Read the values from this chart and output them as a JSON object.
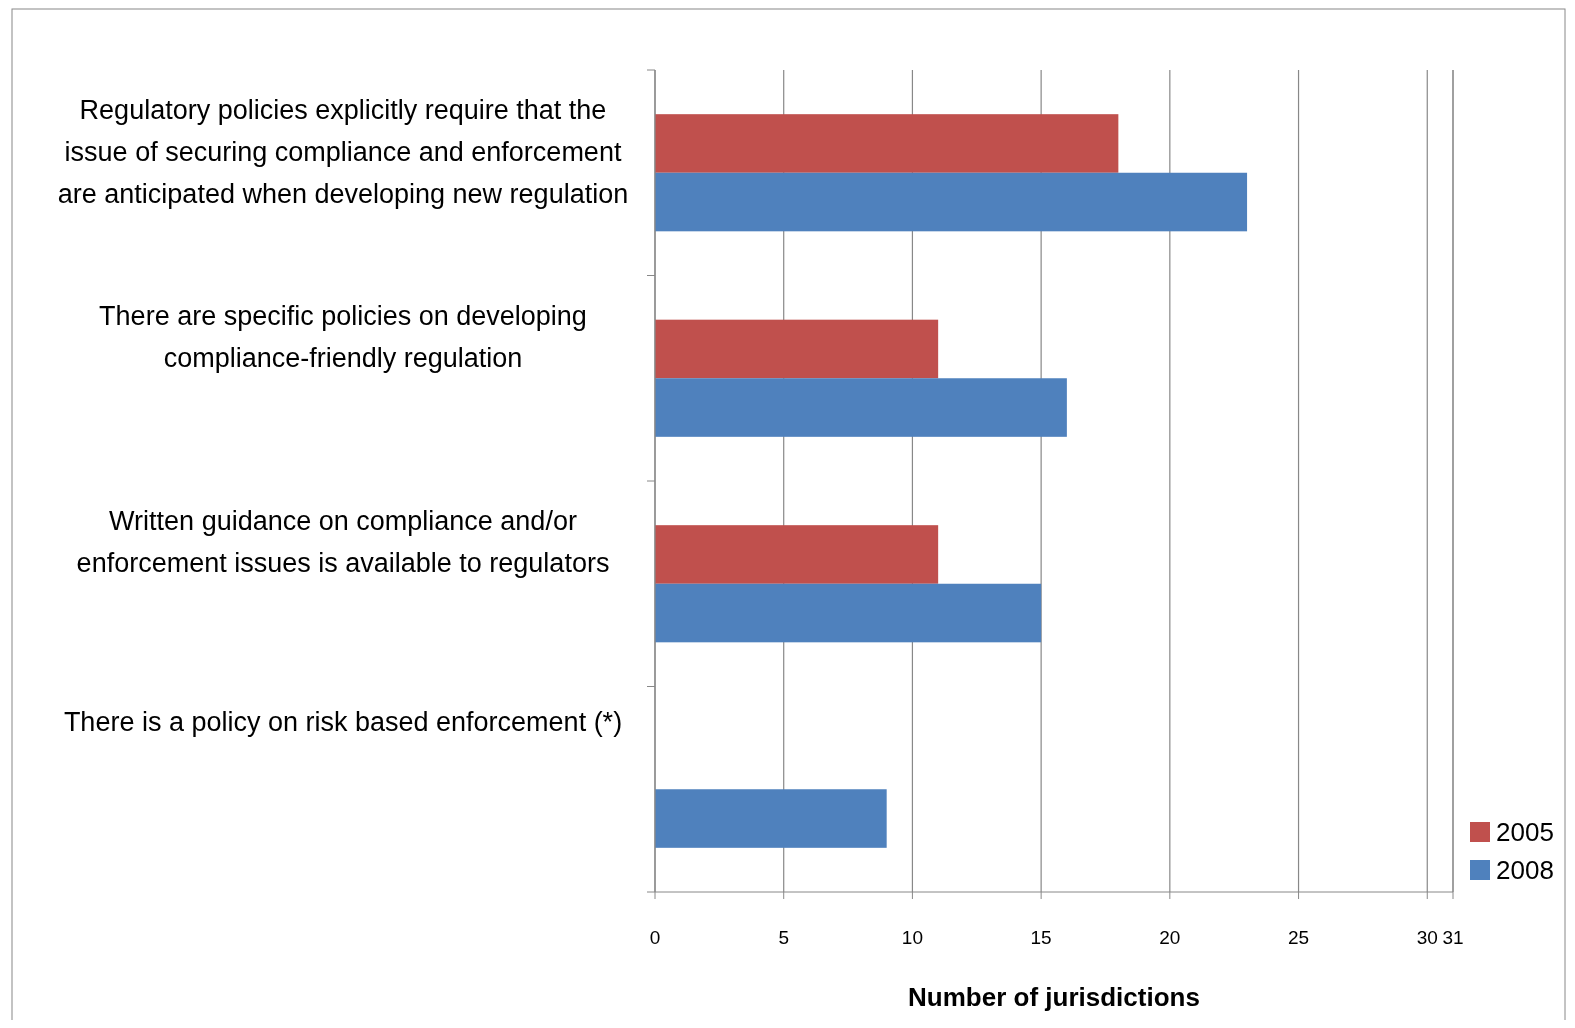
{
  "chart_data": {
    "type": "bar",
    "orientation": "horizontal",
    "xlabel": "Number of jurisdictions",
    "categories": [
      "Regulatory policies explicitly require that the issue of securing compliance and enforcement are anticipated when developing new regulation",
      "There are specific policies on developing compliance-friendly regulation",
      "Written guidance on compliance and/or enforcement issues is available to regulators",
      "There is a policy on risk based enforcement (*)"
    ],
    "series": [
      {
        "name": "2005",
        "color": "#c0504d",
        "values": [
          18,
          11,
          11,
          null
        ]
      },
      {
        "name": "2008",
        "color": "#4f81bd",
        "values": [
          23,
          16,
          15,
          9
        ]
      }
    ],
    "xlim": [
      0,
      31
    ],
    "xticks": [
      0,
      5,
      10,
      15,
      20,
      25,
      30,
      31
    ],
    "grid": "x",
    "legend": "bottom right"
  }
}
